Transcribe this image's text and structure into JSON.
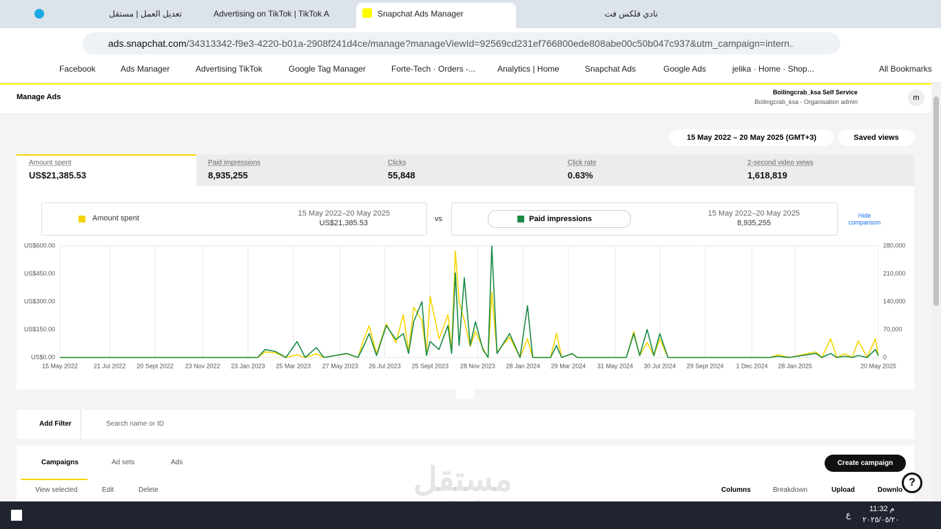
{
  "browser": {
    "tabs": [
      "تعديل العمل | مستقل",
      "Advertising on TikTok | TikTok A",
      "Snapchat Ads Manager",
      "نادي فلكس فت"
    ],
    "url_host": "ads.snapchat.com",
    "url_path": "/34313342-f9e3-4220-b01a-2908f241d4ce/manage?manageViewId=92569cd231ef766800ede808abe00c50b047c937&utm_campaign=intern...",
    "bookmarks": [
      "Facebook",
      "Ads Manager",
      "Advertising TikTok",
      "Google Tag Manager",
      "Forte-Tech · Orders -...",
      "Analytics | Home",
      "Snapchat Ads",
      "Google Ads",
      "jelika · Home · Shop..."
    ],
    "all_bookmarks": "All Bookmarks"
  },
  "header": {
    "menu": "Manage Ads",
    "account": "Boilingcrab_ksa Self Service",
    "org": "Boilingcrab_ksa - Organisation admin",
    "avatar": "m"
  },
  "toolbar": {
    "date_range": "15 May 2022 – 20 May 2025 (GMT+3)",
    "saved_views": "Saved views"
  },
  "metrics": [
    {
      "label": "Amount spent",
      "value": "US$21,385.53"
    },
    {
      "label": "Paid impressions",
      "value": "8,935,255"
    },
    {
      "label": "Clicks",
      "value": "55,848"
    },
    {
      "label": "Click rate",
      "value": "0.63%"
    },
    {
      "label": "2-second video views",
      "value": "1,618,819"
    }
  ],
  "comparison": {
    "period_a": "15 May 2022–20 May 2025",
    "total_a": "US$21,385.53",
    "vs": "vs",
    "period_b": "15 May 2022–20 May 2025",
    "total_b": "8,935,255",
    "hide": "Hide comparison"
  },
  "filters": {
    "add_filter": "Add Filter",
    "search": "Search name or ID"
  },
  "levels": [
    "Campaigns",
    "Ad sets",
    "Ads"
  ],
  "create": "Create campaign",
  "actions": [
    "View selected",
    "Edit",
    "Delete"
  ],
  "table_tools": [
    "Columns",
    "Breakdown",
    "Upload",
    "Downlo"
  ],
  "watermark": [
    "مستقل",
    "mostaql.com"
  ],
  "taskbar": {
    "time": "11:32 م",
    "date": "٢٠٢٥/٠٥/٢٠",
    "lang": "ع"
  },
  "chart_data": {
    "type": "line",
    "x": [
      "2022-05-15",
      "2023-02-05",
      "2023-02-15",
      "2023-03-01",
      "2023-03-15",
      "2023-03-30",
      "2023-04-10",
      "2023-04-25",
      "2023-05-05",
      "2023-06-05",
      "2023-06-20",
      "2023-06-28",
      "2023-07-05",
      "2023-07-15",
      "2023-07-28",
      "2023-08-10",
      "2023-08-20",
      "2023-08-27",
      "2023-09-03",
      "2023-09-14",
      "2023-09-20",
      "2023-09-25",
      "2023-10-07",
      "2023-10-19",
      "2023-10-24",
      "2023-10-29",
      "2023-11-03",
      "2023-11-10",
      "2023-11-18",
      "2023-11-25",
      "2023-12-05",
      "2023-12-12",
      "2023-12-17",
      "2023-12-24",
      "2024-01-10",
      "2024-01-24",
      "2024-02-03",
      "2024-02-10",
      "2024-03-05",
      "2024-03-13",
      "2024-03-20",
      "2024-04-03",
      "2024-04-10",
      "2024-06-15",
      "2024-06-25",
      "2024-07-03",
      "2024-07-13",
      "2024-07-22",
      "2024-07-30",
      "2024-08-10",
      "2024-12-25",
      "2025-01-05",
      "2025-01-20",
      "2025-02-25",
      "2025-03-05",
      "2025-03-17",
      "2025-03-25",
      "2025-04-05",
      "2025-04-15",
      "2025-04-23",
      "2025-05-05",
      "2025-05-16",
      "2025-05-20"
    ],
    "series": [
      {
        "name": "Amount spent",
        "color": "#f5d400",
        "values": [
          0,
          0,
          30,
          25,
          0,
          15,
          0,
          20,
          0,
          20,
          0,
          100,
          170,
          20,
          180,
          80,
          230,
          30,
          270,
          200,
          20,
          330,
          100,
          230,
          40,
          573,
          300,
          200,
          60,
          140,
          50,
          0,
          350,
          30,
          110,
          0,
          100,
          0,
          0,
          130,
          0,
          20,
          0,
          0,
          140,
          10,
          80,
          10,
          100,
          0,
          0,
          15,
          0,
          30,
          0,
          100,
          0,
          20,
          0,
          90,
          0,
          100,
          10
        ]
      },
      {
        "name": "Paid impressions",
        "color": "#1b8a46",
        "axis": "y2",
        "values": [
          0,
          0,
          20000,
          15000,
          0,
          40000,
          0,
          25000,
          0,
          10000,
          0,
          30000,
          60000,
          5000,
          80000,
          45000,
          60000,
          10000,
          90000,
          140000,
          5000,
          40000,
          20000,
          80000,
          10000,
          212000,
          30000,
          200000,
          30000,
          90000,
          20000,
          0,
          280000,
          10000,
          60000,
          0,
          130000,
          0,
          0,
          30000,
          0,
          10000,
          0,
          0,
          60000,
          5000,
          70000,
          5000,
          60000,
          0,
          0,
          3000,
          0,
          10000,
          0,
          10000,
          0,
          3000,
          0,
          5000,
          0,
          20000,
          5000
        ]
      }
    ],
    "xlim": [
      "2022-05-15",
      "2025-05-20"
    ],
    "xticks": [
      {
        "value": "2022-05-15",
        "label": "15 May 2022"
      },
      {
        "value": "2022-07-21",
        "label": "21 Jul 2022"
      },
      {
        "value": "2022-09-20",
        "label": "20 Sept 2022"
      },
      {
        "value": "2022-11-23",
        "label": "23 Nov 2022"
      },
      {
        "value": "2023-01-23",
        "label": "23 Jan 2023"
      },
      {
        "value": "2023-03-25",
        "label": "25 Mar 2023"
      },
      {
        "value": "2023-05-27",
        "label": "27 May 2023"
      },
      {
        "value": "2023-07-26",
        "label": "26 Jul 2023"
      },
      {
        "value": "2023-09-25",
        "label": "25 Sept 2023"
      },
      {
        "value": "2023-11-28",
        "label": "28 Nov 2023"
      },
      {
        "value": "2024-01-28",
        "label": "28 Jan 2024"
      },
      {
        "value": "2024-03-29",
        "label": "29 Mar 2024"
      },
      {
        "value": "2024-05-31",
        "label": "31 May 2024"
      },
      {
        "value": "2024-07-30",
        "label": "30 Jul 2024"
      },
      {
        "value": "2024-09-29",
        "label": "29 Sept 2024"
      },
      {
        "value": "2024-12-01",
        "label": "1 Dec 2024"
      },
      {
        "value": "2025-01-28",
        "label": "28 Jan 2025"
      },
      {
        "value": "2025-05-20",
        "label": "20 May 2025"
      }
    ],
    "ylim": [
      0,
      600
    ],
    "yticks": [
      {
        "value": 0,
        "label": "US$0.00"
      },
      {
        "value": 150,
        "label": "US$150.00"
      },
      {
        "value": 300,
        "label": "US$300.00"
      },
      {
        "value": 450,
        "label": "US$450.00"
      },
      {
        "value": 600,
        "label": "US$600.00"
      }
    ],
    "y2lim": [
      0,
      280000
    ],
    "y2ticks": [
      0,
      {
        "value": 70000,
        "label": "70,000"
      },
      {
        "value": 140000,
        "label": "140,000"
      },
      {
        "value": 210000,
        "label": "210,000"
      },
      {
        "value": 280000,
        "label": "280,000"
      }
    ],
    "grid": true
  }
}
